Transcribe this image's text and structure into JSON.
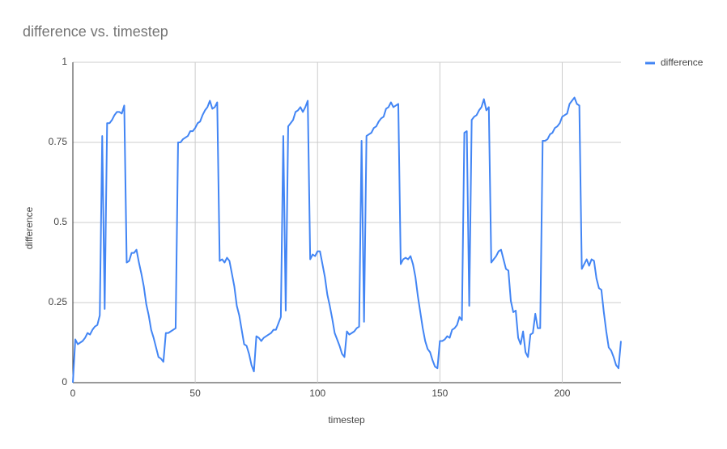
{
  "chart_data": {
    "type": "line",
    "title": "difference vs. timestep",
    "x_label": "timestep",
    "y_label": "difference",
    "x": [
      0,
      1,
      2,
      3,
      4,
      5,
      6,
      7,
      8,
      9,
      10,
      11,
      12,
      13,
      14,
      15,
      16,
      17,
      18,
      19,
      20,
      21,
      22,
      23,
      24,
      25,
      26,
      27,
      28,
      29,
      30,
      31,
      32,
      33,
      34,
      35,
      36,
      37,
      38,
      39,
      40,
      41,
      42,
      43,
      44,
      45,
      46,
      47,
      48,
      49,
      50,
      51,
      52,
      53,
      54,
      55,
      56,
      57,
      58,
      59,
      60,
      61,
      62,
      63,
      64,
      65,
      66,
      67,
      68,
      69,
      70,
      71,
      72,
      73,
      74,
      75,
      76,
      77,
      78,
      79,
      80,
      81,
      82,
      83,
      84,
      85,
      86,
      87,
      88,
      89,
      90,
      91,
      92,
      93,
      94,
      95,
      96,
      97,
      98,
      99,
      100,
      101,
      102,
      103,
      104,
      105,
      106,
      107,
      108,
      109,
      110,
      111,
      112,
      113,
      114,
      115,
      116,
      117,
      118,
      119,
      120,
      121,
      122,
      123,
      124,
      125,
      126,
      127,
      128,
      129,
      130,
      131,
      132,
      133,
      134,
      135,
      136,
      137,
      138,
      139,
      140,
      141,
      142,
      143,
      144,
      145,
      146,
      147,
      148,
      149,
      150,
      151,
      152,
      153,
      154,
      155,
      156,
      157,
      158,
      159,
      160,
      161,
      162,
      163,
      164,
      165,
      166,
      167,
      168,
      169,
      170,
      171,
      172,
      173,
      174,
      175,
      176,
      177,
      178,
      179,
      180,
      181,
      182,
      183,
      184,
      185,
      186,
      187,
      188,
      189,
      190,
      191,
      192,
      193,
      194,
      195,
      196,
      197,
      198,
      199,
      200,
      201,
      202,
      203,
      204,
      205,
      206,
      207,
      208,
      209,
      210,
      211,
      212,
      213,
      214,
      215,
      216,
      217,
      218,
      219,
      220,
      221,
      222,
      223,
      224
    ],
    "series": [
      {
        "name": "difference",
        "color": "#4285f4",
        "values": [
          0,
          0.135,
          0.12,
          0.125,
          0.13,
          0.14,
          0.155,
          0.15,
          0.165,
          0.175,
          0.18,
          0.21,
          0.77,
          0.23,
          0.81,
          0.81,
          0.82,
          0.835,
          0.845,
          0.845,
          0.84,
          0.865,
          0.375,
          0.38,
          0.405,
          0.405,
          0.415,
          0.375,
          0.34,
          0.3,
          0.245,
          0.21,
          0.165,
          0.14,
          0.11,
          0.08,
          0.075,
          0.065,
          0.155,
          0.155,
          0.16,
          0.165,
          0.17,
          0.75,
          0.75,
          0.76,
          0.765,
          0.77,
          0.785,
          0.785,
          0.795,
          0.81,
          0.815,
          0.835,
          0.85,
          0.86,
          0.88,
          0.855,
          0.86,
          0.875,
          0.38,
          0.385,
          0.375,
          0.39,
          0.38,
          0.34,
          0.3,
          0.24,
          0.21,
          0.165,
          0.12,
          0.115,
          0.09,
          0.055,
          0.035,
          0.145,
          0.14,
          0.13,
          0.14,
          0.145,
          0.15,
          0.155,
          0.165,
          0.165,
          0.185,
          0.205,
          0.77,
          0.225,
          0.8,
          0.81,
          0.82,
          0.845,
          0.85,
          0.86,
          0.845,
          0.86,
          0.88,
          0.385,
          0.4,
          0.395,
          0.41,
          0.41,
          0.37,
          0.33,
          0.275,
          0.24,
          0.2,
          0.155,
          0.135,
          0.115,
          0.09,
          0.08,
          0.16,
          0.15,
          0.155,
          0.16,
          0.17,
          0.175,
          0.755,
          0.19,
          0.77,
          0.775,
          0.78,
          0.795,
          0.8,
          0.815,
          0.825,
          0.83,
          0.855,
          0.86,
          0.875,
          0.86,
          0.865,
          0.87,
          0.37,
          0.385,
          0.39,
          0.385,
          0.395,
          0.37,
          0.33,
          0.27,
          0.22,
          0.17,
          0.13,
          0.105,
          0.095,
          0.07,
          0.05,
          0.045,
          0.13,
          0.13,
          0.135,
          0.145,
          0.14,
          0.165,
          0.17,
          0.18,
          0.205,
          0.195,
          0.78,
          0.785,
          0.24,
          0.82,
          0.83,
          0.835,
          0.85,
          0.86,
          0.885,
          0.85,
          0.86,
          0.375,
          0.385,
          0.395,
          0.41,
          0.415,
          0.385,
          0.355,
          0.35,
          0.255,
          0.22,
          0.225,
          0.14,
          0.12,
          0.16,
          0.095,
          0.08,
          0.15,
          0.155,
          0.215,
          0.17,
          0.17,
          0.755,
          0.755,
          0.76,
          0.775,
          0.78,
          0.795,
          0.8,
          0.81,
          0.83,
          0.835,
          0.84,
          0.87,
          0.88,
          0.89,
          0.87,
          0.865,
          0.355,
          0.37,
          0.385,
          0.365,
          0.385,
          0.38,
          0.325,
          0.295,
          0.29,
          0.22,
          0.16,
          0.11,
          0.1,
          0.08,
          0.055,
          0.045,
          0.13
        ]
      }
    ],
    "xlim": [
      0,
      224
    ],
    "xticks": [
      0,
      50,
      100,
      150,
      200
    ],
    "ylim": [
      0,
      1
    ],
    "yticks": [
      0,
      0.25,
      0.5,
      0.75,
      1
    ],
    "grid": true,
    "legend": "right"
  }
}
